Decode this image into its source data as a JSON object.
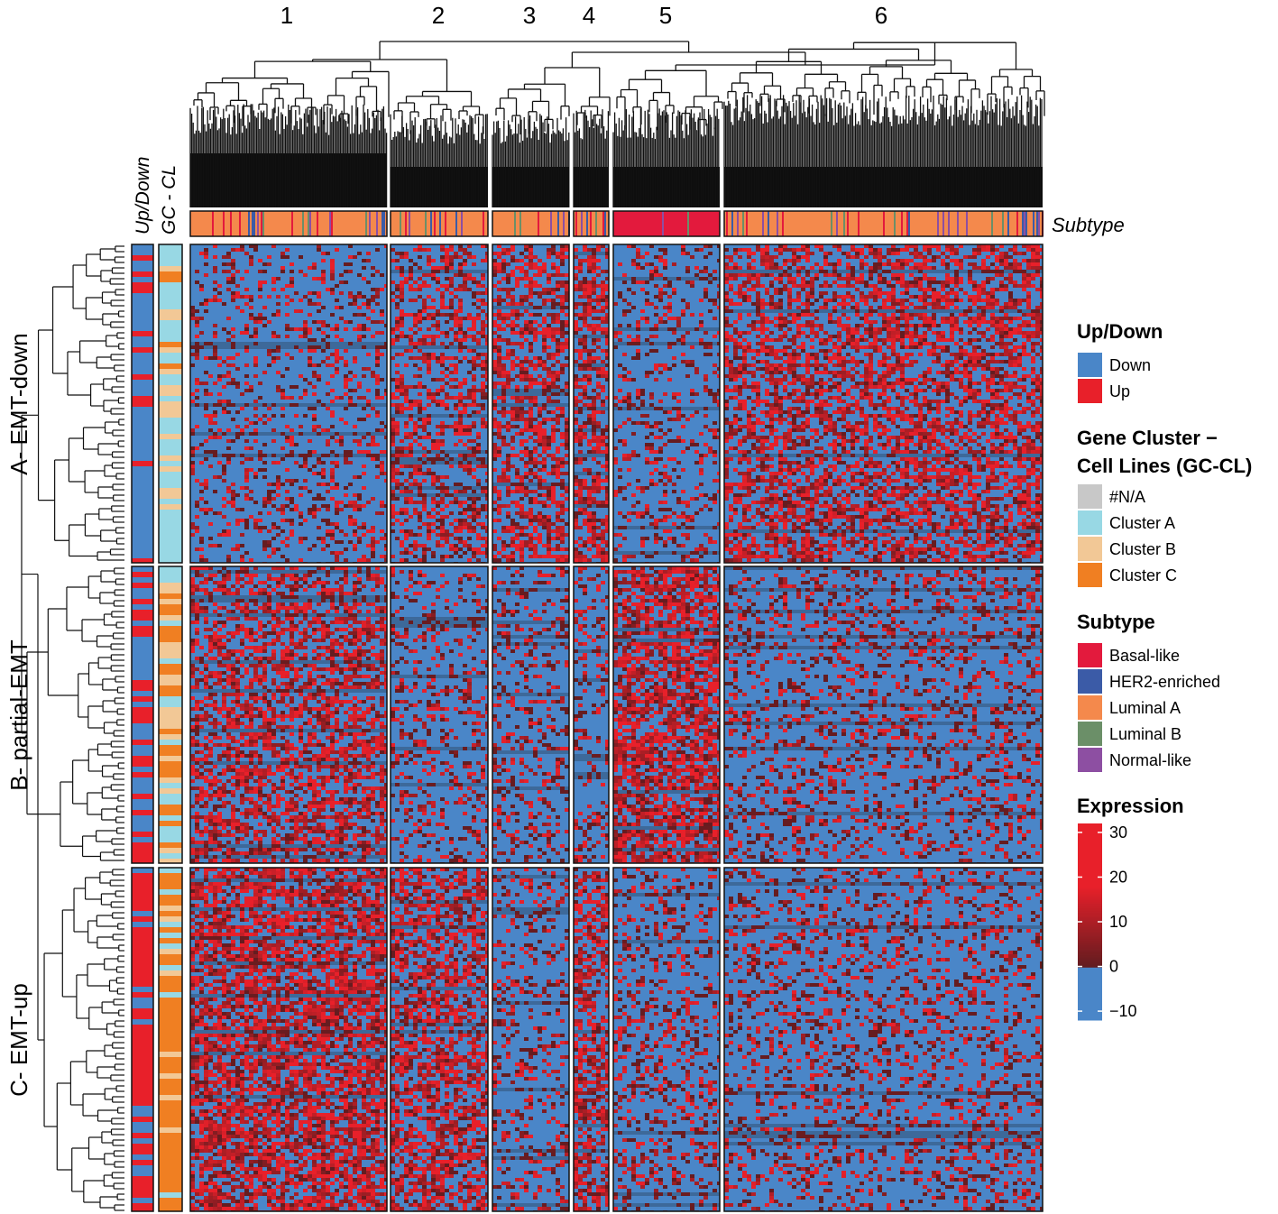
{
  "chart_data": {
    "type": "heatmap",
    "title": "",
    "column_clusters": [
      "1",
      "2",
      "3",
      "4",
      "5",
      "6"
    ],
    "column_cluster_dominant_subtype": [
      "Luminal A",
      "Luminal A",
      "Luminal A",
      "Luminal A",
      "Basal-like",
      "Luminal A"
    ],
    "row_groups": [
      "A- EMT-down",
      "B- partial-EMT",
      "C- EMT-up"
    ],
    "row_annotation_labels": {
      "updown": "Up/Down",
      "gccl": "GC - CL"
    },
    "column_annotation_label": "Subtype",
    "legends": {
      "updown": {
        "title": "Up/Down",
        "items": [
          {
            "label": "Down",
            "color": "#4a86c8"
          },
          {
            "label": "Up",
            "color": "#e8202a"
          }
        ]
      },
      "gccl": {
        "title_line1": "Gene Cluster −",
        "title_line2": "Cell Lines (GC-CL)",
        "items": [
          {
            "label": "#N/A",
            "color": "#c8c8c8"
          },
          {
            "label": "Cluster A",
            "color": "#98d8e4"
          },
          {
            "label": "Cluster B",
            "color": "#f2c896"
          },
          {
            "label": "Cluster C",
            "color": "#f07f22"
          }
        ]
      },
      "subtype": {
        "title": "Subtype",
        "items": [
          {
            "label": "Basal-like",
            "color": "#e31a3d"
          },
          {
            "label": "HER2-enriched",
            "color": "#3b5ba7"
          },
          {
            "label": "Luminal A",
            "color": "#f4894c"
          },
          {
            "label": "Luminal B",
            "color": "#6b8f68"
          },
          {
            "label": "Normal-like",
            "color": "#8d4fa2"
          }
        ]
      },
      "expression": {
        "title": "Expression",
        "ticks": [
          30,
          20,
          10,
          0,
          -10
        ],
        "range": [
          -12,
          32
        ],
        "colors": {
          "low": "#4a86c8",
          "zero": "#1a1a1a",
          "high": "#e8202a"
        }
      }
    },
    "approx_block_expression_pattern": {
      "A- EMT-down": {
        "1": "low",
        "2": "mixed",
        "3": "mixed-high",
        "4": "mixed-high",
        "5": "low",
        "6": "mixed-high"
      },
      "B- partial-EMT": {
        "1": "mixed-high",
        "2": "low",
        "3": "low",
        "4": "low",
        "5": "high",
        "6": "low"
      },
      "C- EMT-up": {
        "1": "high",
        "2": "mixed-high",
        "3": "low",
        "4": "mixed-high",
        "5": "low",
        "6": "low"
      }
    }
  }
}
